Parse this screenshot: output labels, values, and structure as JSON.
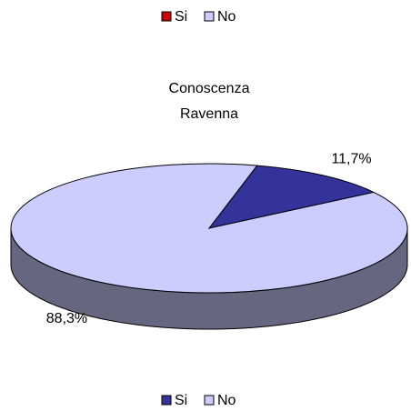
{
  "chart_data": {
    "type": "pie3d",
    "title": "Conoscenza Ravenna",
    "categories": [
      "Si",
      "No"
    ],
    "values": [
      11.7,
      88.3
    ],
    "value_labels": [
      "11,7%",
      "88,3%"
    ],
    "colors": [
      "#333399",
      "#ccccff"
    ],
    "legend": "bottom",
    "extra_legend": {
      "position": "top",
      "labels": [
        "Si",
        "No"
      ],
      "colors": [
        "#cc0000",
        "#ccccff"
      ]
    }
  }
}
